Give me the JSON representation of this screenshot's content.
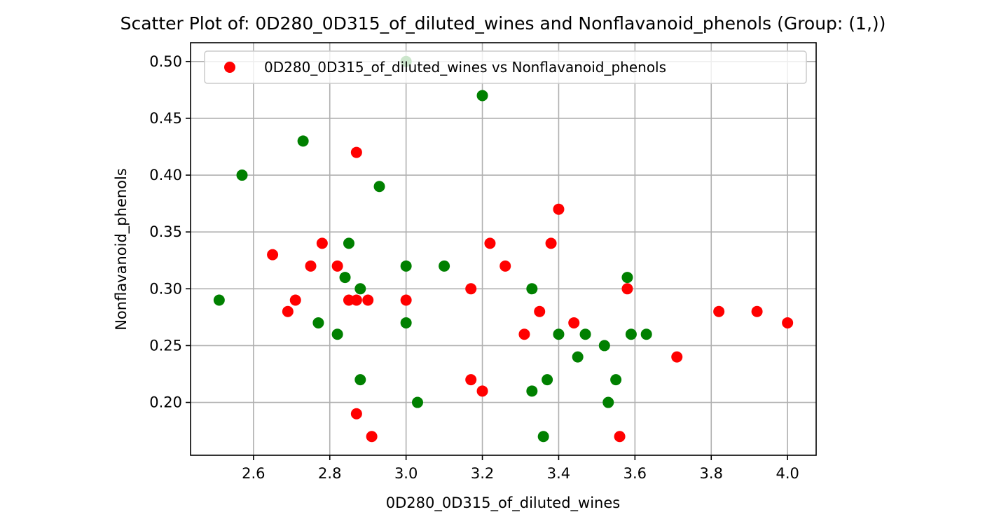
{
  "chart_data": {
    "type": "scatter",
    "title": "Scatter Plot of: 0D280_0D315_of_diluted_wines and Nonflavanoid_phenols (Group: (1,))",
    "xlabel": "0D280_0D315_of_diluted_wines",
    "ylabel": "Nonflavanoid_phenols",
    "xlim": [
      2.435,
      4.075
    ],
    "ylim": [
      0.1535,
      0.5165
    ],
    "xticks": [
      2.6,
      2.8,
      3.0,
      3.2,
      3.4,
      3.6,
      3.8,
      4.0
    ],
    "xtick_labels": [
      "2.6",
      "2.8",
      "3.0",
      "3.2",
      "3.4",
      "3.6",
      "3.8",
      "4.0"
    ],
    "yticks": [
      0.2,
      0.25,
      0.3,
      0.35,
      0.4,
      0.45,
      0.5
    ],
    "ytick_labels": [
      "0.20",
      "0.25",
      "0.30",
      "0.35",
      "0.40",
      "0.45",
      "0.50"
    ],
    "grid": true,
    "legend": {
      "position": "top-right",
      "entries": [
        {
          "label": "0D280_0D315_of_diluted_wines vs Nonflavanoid_phenols",
          "color": "#ff0000"
        }
      ]
    },
    "series": [
      {
        "color": "#ff0000",
        "points": [
          [
            2.65,
            0.33
          ],
          [
            2.69,
            0.28
          ],
          [
            2.71,
            0.29
          ],
          [
            2.75,
            0.32
          ],
          [
            2.78,
            0.34
          ],
          [
            2.82,
            0.32
          ],
          [
            2.85,
            0.29
          ],
          [
            2.87,
            0.29
          ],
          [
            2.87,
            0.42
          ],
          [
            2.87,
            0.19
          ],
          [
            2.9,
            0.29
          ],
          [
            2.91,
            0.17
          ],
          [
            3.0,
            0.29
          ],
          [
            3.17,
            0.3
          ],
          [
            3.17,
            0.22
          ],
          [
            3.2,
            0.21
          ],
          [
            3.22,
            0.34
          ],
          [
            3.26,
            0.32
          ],
          [
            3.31,
            0.26
          ],
          [
            3.35,
            0.28
          ],
          [
            3.38,
            0.34
          ],
          [
            3.4,
            0.37
          ],
          [
            3.44,
            0.27
          ],
          [
            3.56,
            0.17
          ],
          [
            3.58,
            0.3
          ],
          [
            3.71,
            0.24
          ],
          [
            3.82,
            0.28
          ],
          [
            3.92,
            0.28
          ],
          [
            4.0,
            0.27
          ]
        ]
      },
      {
        "color": "#008000",
        "points": [
          [
            2.51,
            0.29
          ],
          [
            2.57,
            0.4
          ],
          [
            2.73,
            0.43
          ],
          [
            2.77,
            0.27
          ],
          [
            2.82,
            0.26
          ],
          [
            2.84,
            0.31
          ],
          [
            2.85,
            0.34
          ],
          [
            2.88,
            0.3
          ],
          [
            2.88,
            0.22
          ],
          [
            2.93,
            0.39
          ],
          [
            3.0,
            0.5
          ],
          [
            3.0,
            0.32
          ],
          [
            3.0,
            0.27
          ],
          [
            3.03,
            0.2
          ],
          [
            3.1,
            0.32
          ],
          [
            3.2,
            0.47
          ],
          [
            3.33,
            0.3
          ],
          [
            3.33,
            0.21
          ],
          [
            3.36,
            0.17
          ],
          [
            3.37,
            0.22
          ],
          [
            3.4,
            0.26
          ],
          [
            3.45,
            0.24
          ],
          [
            3.47,
            0.26
          ],
          [
            3.52,
            0.25
          ],
          [
            3.53,
            0.2
          ],
          [
            3.55,
            0.22
          ],
          [
            3.58,
            0.31
          ],
          [
            3.59,
            0.26
          ],
          [
            3.63,
            0.26
          ]
        ]
      }
    ]
  }
}
